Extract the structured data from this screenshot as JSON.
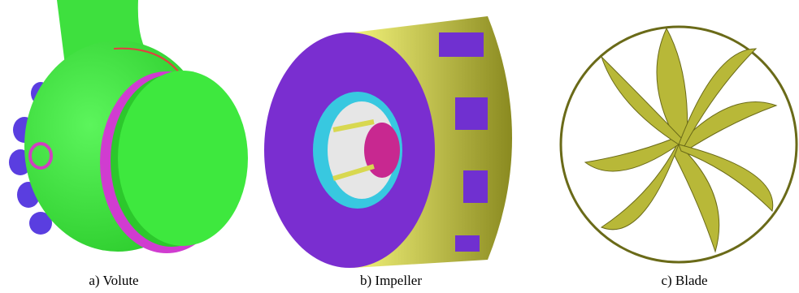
{
  "figure": {
    "panels": [
      {
        "caption": "a) Volute"
      },
      {
        "caption": "b) Impeller"
      },
      {
        "caption": "c) Blade"
      }
    ]
  }
}
